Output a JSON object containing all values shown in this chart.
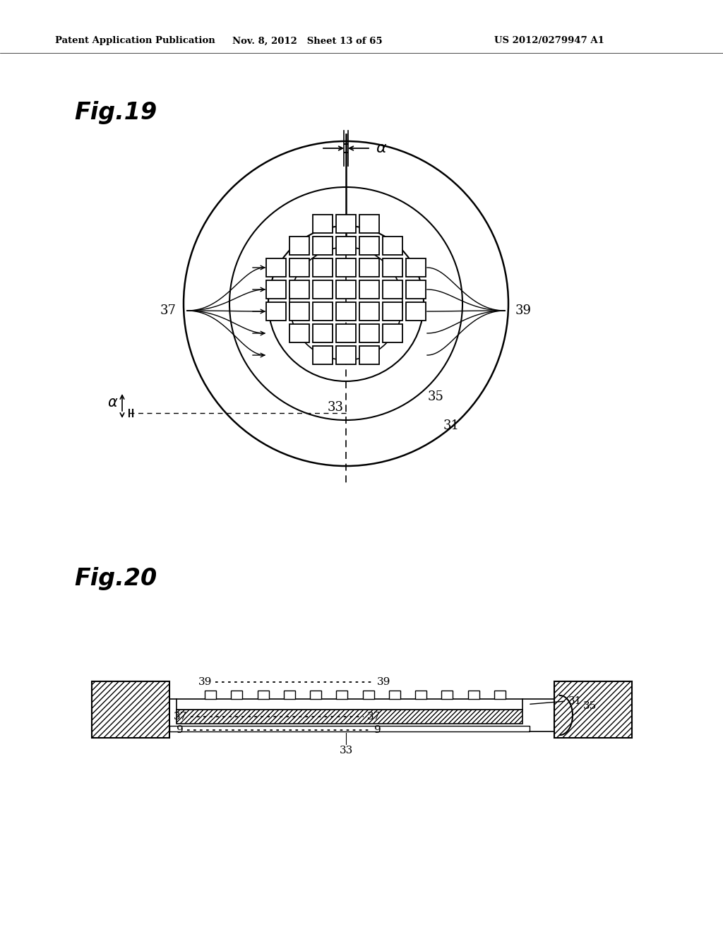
{
  "bg_color": "#ffffff",
  "fig19_title": "Fig.19",
  "fig20_title": "Fig.20",
  "header_left": "Patent Application Publication",
  "header_mid": "Nov. 8, 2012   Sheet 13 of 65",
  "header_right": "US 2012/0279947 A1"
}
